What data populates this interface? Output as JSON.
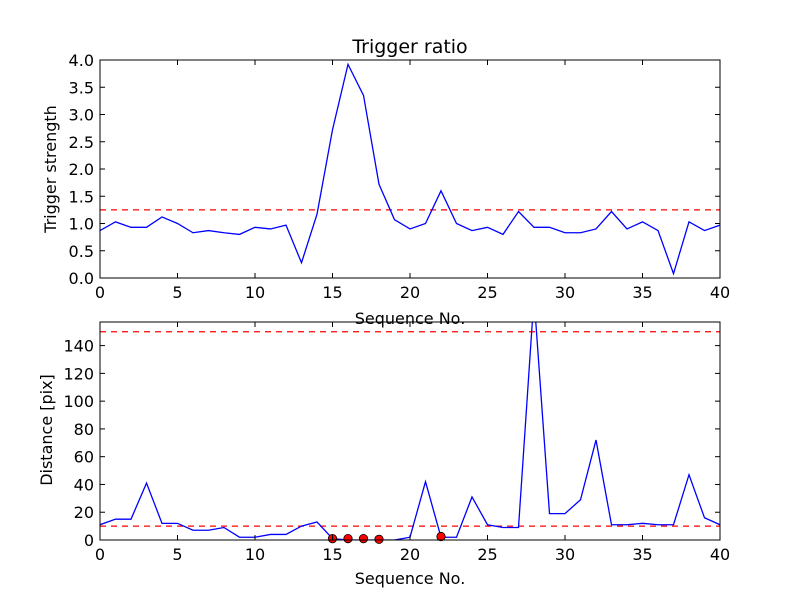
{
  "chart_data": [
    {
      "type": "line",
      "title": "Trigger ratio",
      "xlabel": "Sequence No.",
      "ylabel": "Trigger strength",
      "xlim": [
        0,
        40
      ],
      "ylim": [
        0,
        4.0
      ],
      "xticks": [
        "0",
        "5",
        "10",
        "15",
        "20",
        "25",
        "30",
        "35",
        "40"
      ],
      "yticks": [
        "0.0",
        "0.5",
        "1.0",
        "1.5",
        "2.0",
        "2.5",
        "3.0",
        "3.5",
        "4.0"
      ],
      "grid": false,
      "series": [
        {
          "color": "#0000ff",
          "style": "solid",
          "x": [
            0,
            1,
            2,
            3,
            4,
            5,
            6,
            7,
            8,
            9,
            10,
            11,
            12,
            13,
            14,
            15,
            16,
            17,
            18,
            19,
            20,
            21,
            22,
            23,
            24,
            25,
            26,
            27,
            28,
            29,
            30,
            31,
            32,
            33,
            34,
            35,
            36,
            37,
            38,
            39,
            40
          ],
          "values": [
            0.87,
            1.03,
            0.93,
            0.93,
            1.12,
            1.0,
            0.83,
            0.87,
            0.83,
            0.8,
            0.93,
            0.9,
            0.97,
            0.28,
            1.17,
            2.72,
            3.92,
            3.35,
            1.72,
            1.07,
            0.9,
            1.0,
            1.6,
            1.0,
            0.87,
            0.93,
            0.8,
            1.22,
            0.93,
            0.93,
            0.83,
            0.83,
            0.9,
            1.22,
            0.9,
            1.03,
            0.87,
            0.08,
            1.03,
            0.87,
            0.97
          ]
        }
      ],
      "hlines": [
        {
          "y": 1.25,
          "color": "#ff0000",
          "style": "dashed"
        }
      ]
    },
    {
      "type": "line",
      "title": "",
      "xlabel": "Sequence No.",
      "ylabel": "Distance [pix]",
      "xlim": [
        0,
        40
      ],
      "ylim": [
        0,
        157
      ],
      "xticks": [
        "0",
        "5",
        "10",
        "15",
        "20",
        "25",
        "30",
        "35",
        "40"
      ],
      "yticks": [
        "0",
        "20",
        "40",
        "60",
        "80",
        "100",
        "120",
        "140"
      ],
      "grid": false,
      "series": [
        {
          "color": "#0000ff",
          "style": "solid",
          "x": [
            0,
            1,
            2,
            3,
            4,
            5,
            6,
            7,
            8,
            9,
            10,
            11,
            12,
            13,
            14,
            15,
            16,
            17,
            18,
            19,
            20,
            21,
            22,
            23,
            24,
            25,
            26,
            27,
            28,
            29,
            30,
            31,
            32,
            33,
            34,
            35,
            36,
            37,
            38,
            39,
            40
          ],
          "values": [
            11,
            15,
            15,
            41,
            12,
            12,
            7,
            7,
            9,
            2,
            2,
            4,
            4,
            10,
            13,
            1,
            0,
            0,
            0,
            0,
            2,
            42,
            2,
            2,
            31,
            11,
            9,
            9,
            175,
            19,
            19,
            29,
            72,
            11,
            11,
            12,
            11,
            11,
            47,
            16,
            11
          ]
        }
      ],
      "markers": {
        "color": "#ff0000",
        "x": [
          15,
          16,
          17,
          18,
          22
        ],
        "values": [
          1,
          1,
          1,
          0.5,
          2.5
        ]
      },
      "hlines": [
        {
          "y": 150,
          "color": "#ff0000",
          "style": "dashed"
        },
        {
          "y": 10,
          "color": "#ff0000",
          "style": "dashed"
        }
      ]
    }
  ]
}
